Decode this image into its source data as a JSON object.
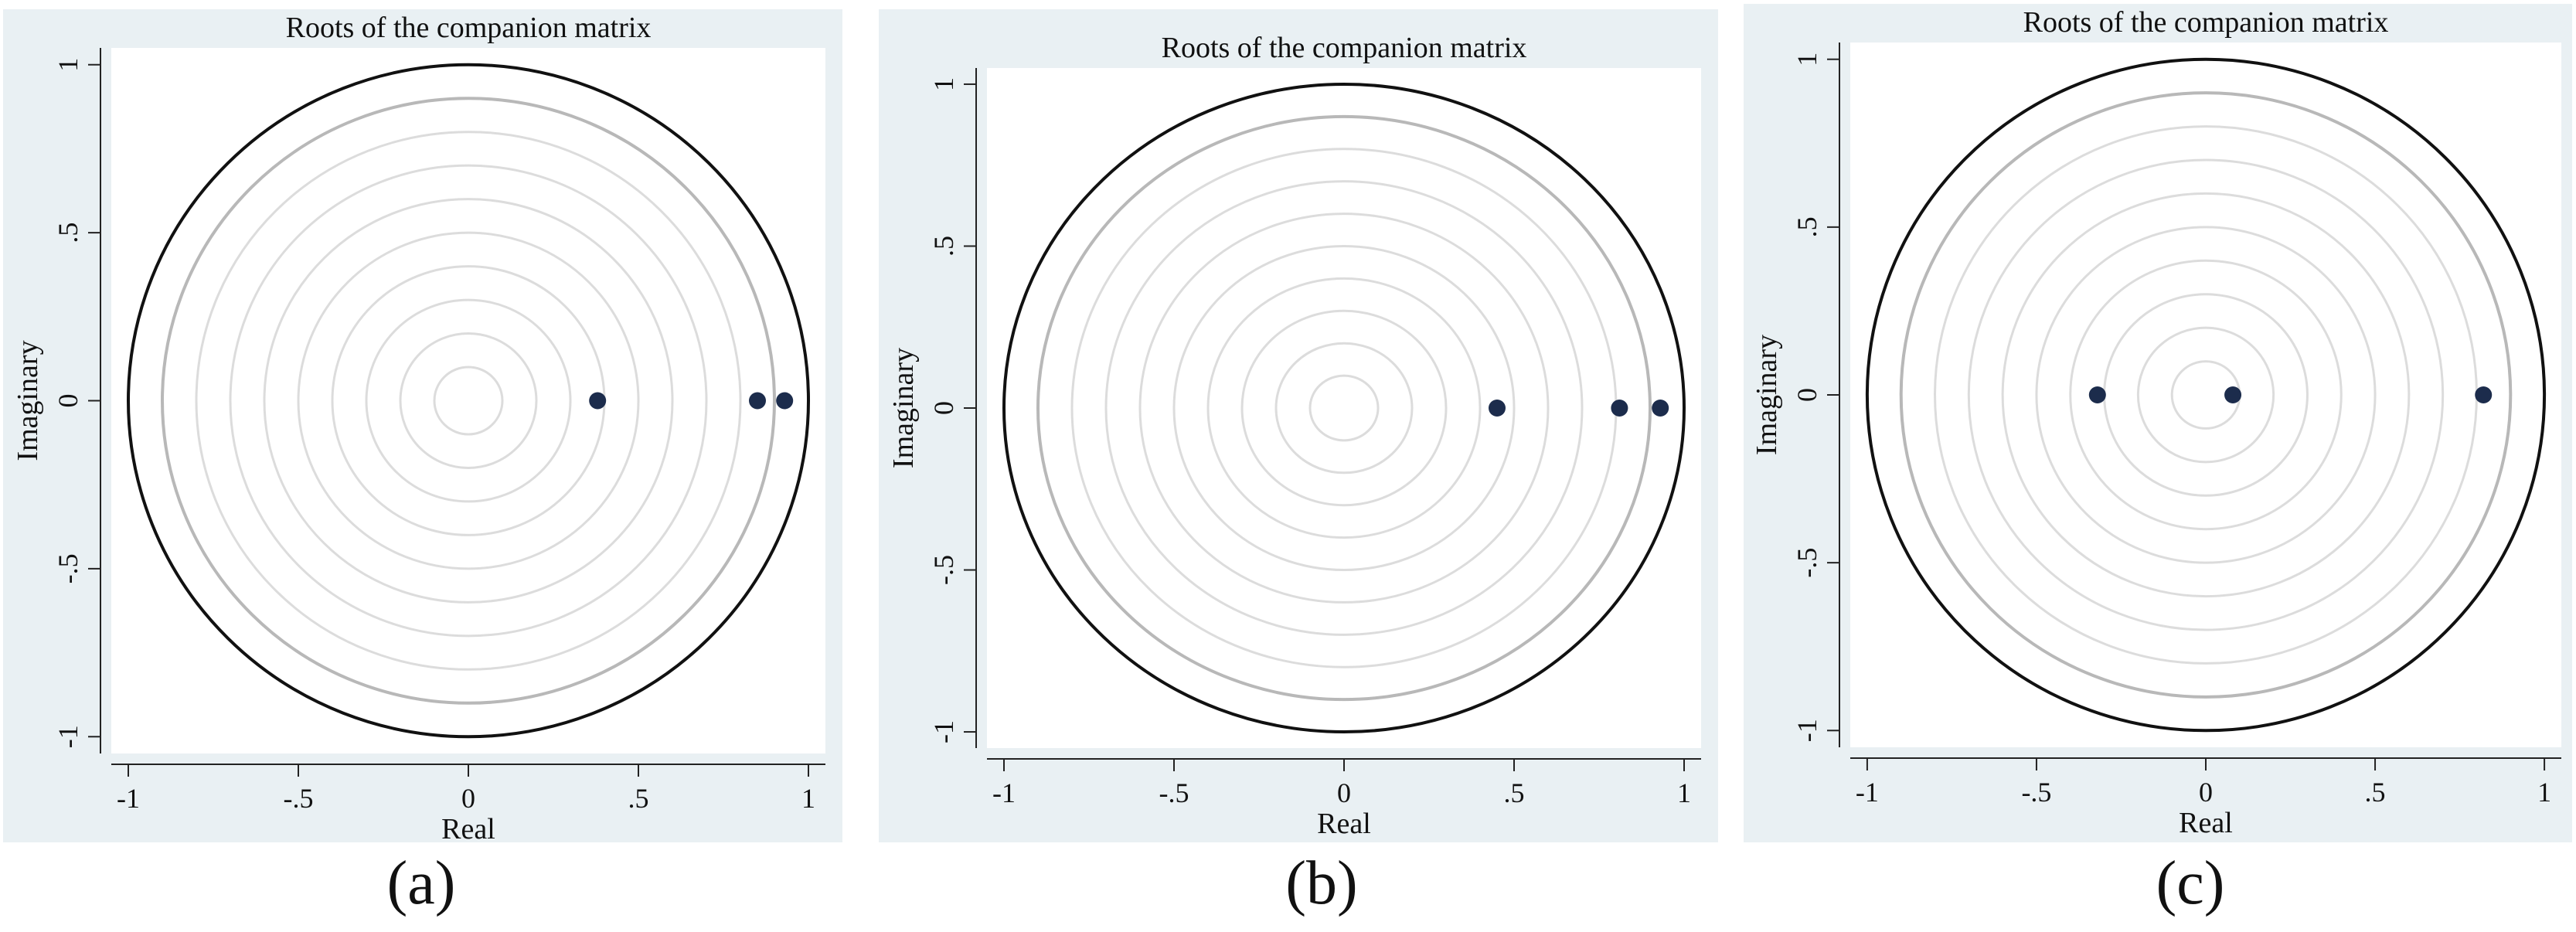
{
  "chart_data": [
    {
      "type": "scatter",
      "title": "Roots of the companion matrix",
      "xlabel": "Real",
      "ylabel": "Imaginary",
      "xlim": [
        -1.05,
        1.05
      ],
      "ylim": [
        -1.05,
        1.05
      ],
      "xticks": [
        -1,
        -0.5,
        0,
        0.5,
        1
      ],
      "xtick_labels": [
        "-1",
        "-.5",
        "0",
        ".5",
        "1"
      ],
      "yticks": [
        -1,
        -0.5,
        0,
        0.5,
        1
      ],
      "ytick_labels": [
        "-1",
        "-.5",
        "0",
        ".5",
        "1"
      ],
      "unit_circle": true,
      "guide_circle_radii": [
        0.1,
        0.2,
        0.3,
        0.4,
        0.5,
        0.6,
        0.7,
        0.8,
        0.9
      ],
      "points": [
        {
          "x": 0.38,
          "y": 0
        },
        {
          "x": 0.85,
          "y": 0
        },
        {
          "x": 0.93,
          "y": 0
        }
      ],
      "caption": "(a)"
    },
    {
      "type": "scatter",
      "title": "Roots of the companion matrix",
      "xlabel": "Real",
      "ylabel": "Imaginary",
      "xlim": [
        -1.05,
        1.05
      ],
      "ylim": [
        -1.05,
        1.05
      ],
      "xticks": [
        -1,
        -0.5,
        0,
        0.5,
        1
      ],
      "xtick_labels": [
        "-1",
        "-.5",
        "0",
        ".5",
        "1"
      ],
      "yticks": [
        -1,
        -0.5,
        0,
        0.5,
        1
      ],
      "ytick_labels": [
        "-1",
        "-.5",
        "0",
        ".5",
        "1"
      ],
      "unit_circle": true,
      "guide_circle_radii": [
        0.1,
        0.2,
        0.3,
        0.4,
        0.5,
        0.6,
        0.7,
        0.8,
        0.9
      ],
      "points": [
        {
          "x": 0.45,
          "y": 0
        },
        {
          "x": 0.81,
          "y": 0
        },
        {
          "x": 0.93,
          "y": 0
        }
      ],
      "caption": "(b)"
    },
    {
      "type": "scatter",
      "title": "Roots of the companion matrix",
      "xlabel": "Real",
      "ylabel": "Imaginary",
      "xlim": [
        -1.05,
        1.05
      ],
      "ylim": [
        -1.05,
        1.05
      ],
      "xticks": [
        -1,
        -0.5,
        0,
        0.5,
        1
      ],
      "xtick_labels": [
        "-1",
        "-.5",
        "0",
        ".5",
        "1"
      ],
      "yticks": [
        -1,
        -0.5,
        0,
        0.5,
        1
      ],
      "ytick_labels": [
        "-1",
        "-.5",
        "0",
        ".5",
        "1"
      ],
      "unit_circle": true,
      "guide_circle_radii": [
        0.1,
        0.2,
        0.3,
        0.4,
        0.5,
        0.6,
        0.7,
        0.8,
        0.9
      ],
      "points": [
        {
          "x": -0.32,
          "y": 0
        },
        {
          "x": 0.08,
          "y": 0
        },
        {
          "x": 0.82,
          "y": 0
        }
      ],
      "caption": "(c)"
    }
  ],
  "colors": {
    "panel_background": "#e9f0f3",
    "plot_background": "#ffffff",
    "unit_circle": "#111111",
    "guide_circle_light": "#dcdcdc",
    "guide_circle_outer": "#b8b8b8",
    "point": "#1c2c4c"
  }
}
